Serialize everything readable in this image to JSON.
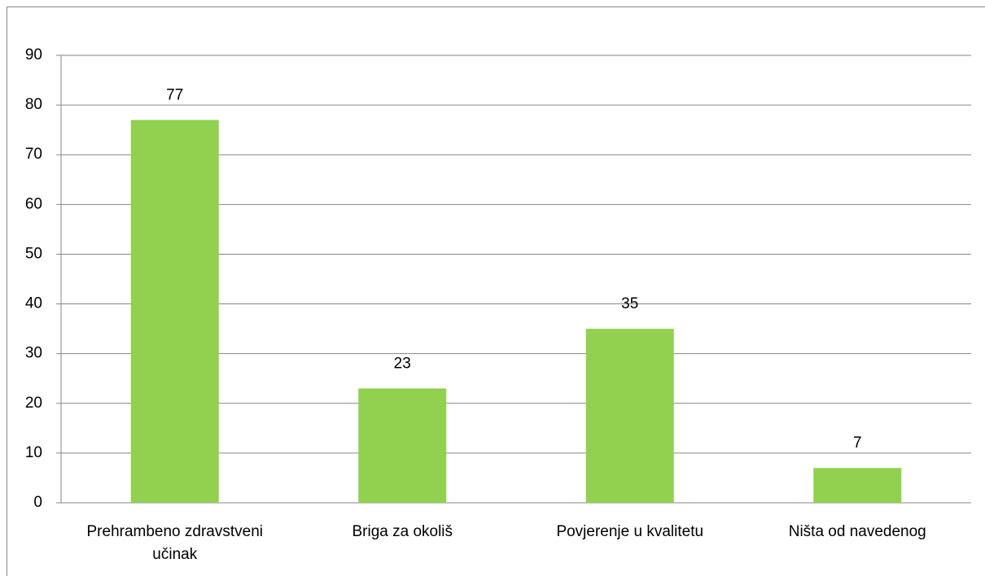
{
  "chart_data": {
    "type": "bar",
    "categories": [
      "Prehrambeno zdravstveni učinak",
      "Briga za okoliš",
      "Povjerenje u kvalitetu",
      "Ništa od navedenog"
    ],
    "values": [
      77,
      23,
      35,
      7
    ],
    "color": "#92d050",
    "ylim": [
      0,
      90
    ],
    "yticks": [
      0,
      10,
      20,
      30,
      40,
      50,
      60,
      70,
      80,
      90
    ],
    "grid": true
  }
}
